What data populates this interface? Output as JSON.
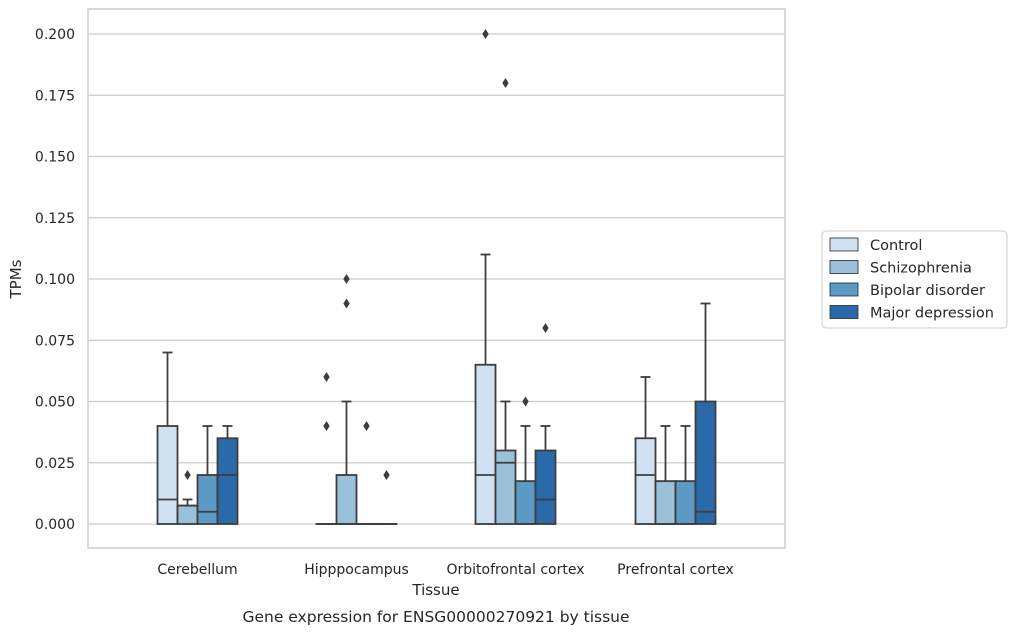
{
  "chart_data": {
    "type": "box",
    "title": "",
    "caption": "Gene expression for ENSG00000270921 by tissue",
    "xlabel": "Tissue",
    "ylabel": "TPMs",
    "ylim": [
      -0.01,
      0.21
    ],
    "yticks": [
      "0.000",
      "0.025",
      "0.050",
      "0.075",
      "0.100",
      "0.125",
      "0.150",
      "0.175",
      "0.200"
    ],
    "ytick_values": [
      0,
      0.025,
      0.05,
      0.075,
      0.1,
      0.125,
      0.15,
      0.175,
      0.2
    ],
    "grid": true,
    "legend_position": "right",
    "categories": [
      "Cerebellum",
      "Hipppocampus",
      "Orbitofrontal cortex",
      "Prefrontal cortex"
    ],
    "series": [
      {
        "name": "Control",
        "color": "#d0e1f2",
        "boxes": [
          {
            "q1": 0,
            "median": 0.01,
            "q3": 0.04,
            "whisker_low": 0,
            "whisker_high": 0.07,
            "outliers": []
          },
          {
            "q1": 0,
            "median": 0,
            "q3": 0,
            "whisker_low": 0,
            "whisker_high": 0,
            "outliers": [
              0.06,
              0.04
            ]
          },
          {
            "q1": 0,
            "median": 0.02,
            "q3": 0.065,
            "whisker_low": 0,
            "whisker_high": 0.11,
            "outliers": [
              0.2
            ]
          },
          {
            "q1": 0,
            "median": 0.02,
            "q3": 0.035,
            "whisker_low": 0,
            "whisker_high": 0.06,
            "outliers": []
          }
        ]
      },
      {
        "name": "Schizophrenia",
        "color": "#9ac1da",
        "boxes": [
          {
            "q1": 0,
            "median": 0.0075,
            "q3": 0.0075,
            "whisker_low": 0,
            "whisker_high": 0.01,
            "outliers": [
              0.02
            ]
          },
          {
            "q1": 0,
            "median": 0,
            "q3": 0.02,
            "whisker_low": 0,
            "whisker_high": 0.05,
            "outliers": [
              0.1,
              0.09
            ]
          },
          {
            "q1": 0,
            "median": 0.025,
            "q3": 0.03,
            "whisker_low": 0,
            "whisker_high": 0.05,
            "outliers": [
              0.18
            ]
          },
          {
            "q1": 0,
            "median": 0,
            "q3": 0.0175,
            "whisker_low": 0,
            "whisker_high": 0.04,
            "outliers": []
          }
        ]
      },
      {
        "name": "Bipolar disorder",
        "color": "#5c99c5",
        "boxes": [
          {
            "q1": 0,
            "median": 0.005,
            "q3": 0.02,
            "whisker_low": 0,
            "whisker_high": 0.04,
            "outliers": []
          },
          {
            "q1": 0,
            "median": 0,
            "q3": 0,
            "whisker_low": 0,
            "whisker_high": 0,
            "outliers": [
              0.04
            ]
          },
          {
            "q1": 0,
            "median": 0,
            "q3": 0.0175,
            "whisker_low": 0,
            "whisker_high": 0.04,
            "outliers": [
              0.05
            ]
          },
          {
            "q1": 0,
            "median": 0,
            "q3": 0.0175,
            "whisker_low": 0,
            "whisker_high": 0.04,
            "outliers": []
          }
        ]
      },
      {
        "name": "Major depression",
        "color": "#2b6aa8",
        "boxes": [
          {
            "q1": 0,
            "median": 0.02,
            "q3": 0.035,
            "whisker_low": 0,
            "whisker_high": 0.04,
            "outliers": []
          },
          {
            "q1": 0,
            "median": 0,
            "q3": 0,
            "whisker_low": 0,
            "whisker_high": 0,
            "outliers": [
              0.02
            ]
          },
          {
            "q1": 0,
            "median": 0.01,
            "q3": 0.03,
            "whisker_low": 0,
            "whisker_high": 0.04,
            "outliers": [
              0.08
            ]
          },
          {
            "q1": 0,
            "median": 0.005,
            "q3": 0.05,
            "whisker_low": 0,
            "whisker_high": 0.09,
            "outliers": []
          }
        ]
      }
    ]
  }
}
